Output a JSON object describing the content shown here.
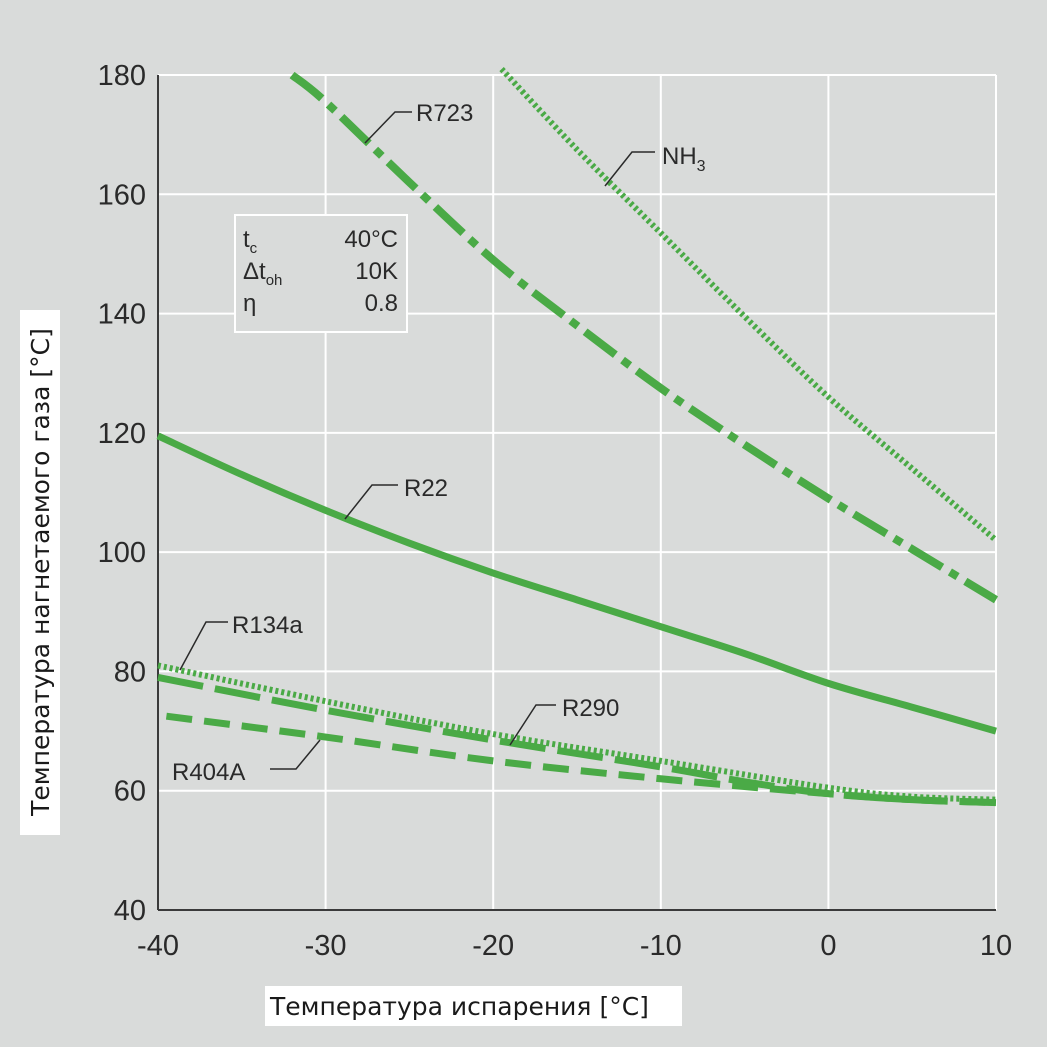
{
  "chart_data": {
    "type": "line",
    "xlabel": "Температура испарения",
    "xlabel_unit": "[°C]",
    "ylabel": "Температура нагнетаемого газа",
    "ylabel_unit": "[°C]",
    "xlim": [
      -40,
      10
    ],
    "ylim": [
      40,
      180
    ],
    "xticks": [
      -40,
      -30,
      -20,
      -10,
      0,
      10
    ],
    "yticks": [
      40,
      60,
      80,
      100,
      120,
      140,
      160,
      180
    ],
    "xtick_labels": [
      "-40",
      "-30",
      "-20",
      "-10",
      "0",
      "10"
    ],
    "ytick_labels": [
      "40",
      "60",
      "80",
      "100",
      "120",
      "140",
      "160",
      "180"
    ],
    "grid": true,
    "conditions": {
      "tc_label": "t",
      "tc_sub": "c",
      "tc_value": "40°C",
      "dtoh_label": "Δt",
      "dtoh_sub": "oh",
      "dtoh_value": "10K",
      "eta_label": "η",
      "eta_value": "0.8"
    },
    "series": [
      {
        "name": "R723",
        "label": "R723",
        "style": "dashdot",
        "x": [
          -32,
          -30,
          -25,
          -20,
          -15,
          -10,
          -5,
          0,
          5,
          10
        ],
        "y": [
          180,
          175.5,
          162,
          149,
          138,
          127.5,
          118,
          109,
          100.5,
          92
        ]
      },
      {
        "name": "NH3",
        "label": "NH",
        "label_sub": "3",
        "style": "dotted",
        "x": [
          -19.5,
          -15,
          -10,
          -5,
          0,
          5,
          10
        ],
        "y": [
          181,
          167.5,
          153.5,
          139.5,
          126,
          114,
          102
        ]
      },
      {
        "name": "R22",
        "label": "R22",
        "style": "solid",
        "x": [
          -40,
          -35,
          -30,
          -25,
          -20,
          -15,
          -10,
          -5,
          0,
          5,
          10
        ],
        "y": [
          119.5,
          113,
          107,
          101.5,
          96.5,
          92,
          87.5,
          83,
          78,
          74,
          70
        ]
      },
      {
        "name": "R134a",
        "label": "R134a",
        "style": "dotted",
        "x": [
          -40,
          -30,
          -20,
          -10,
          0,
          5,
          10
        ],
        "y": [
          81,
          75,
          69.5,
          65,
          60.5,
          59,
          58.5
        ]
      },
      {
        "name": "R290",
        "label": "R290",
        "style": "longdash",
        "x": [
          -40,
          -30,
          -20,
          -10,
          -5,
          0,
          5,
          10
        ],
        "y": [
          79,
          73.5,
          68.5,
          64,
          61.5,
          59.5,
          58.5,
          58
        ]
      },
      {
        "name": "R404A",
        "label": "R404A",
        "style": "dashed",
        "x": [
          -39.5,
          -30,
          -20,
          -10,
          0,
          5,
          10
        ],
        "y": [
          72.5,
          69,
          65,
          62,
          59.5,
          58.5,
          58
        ]
      }
    ],
    "colors": {
      "line": "#4aaa46",
      "grid": "#ffffff",
      "axis": "#3a3a3a",
      "background": "#d9dbda"
    }
  }
}
